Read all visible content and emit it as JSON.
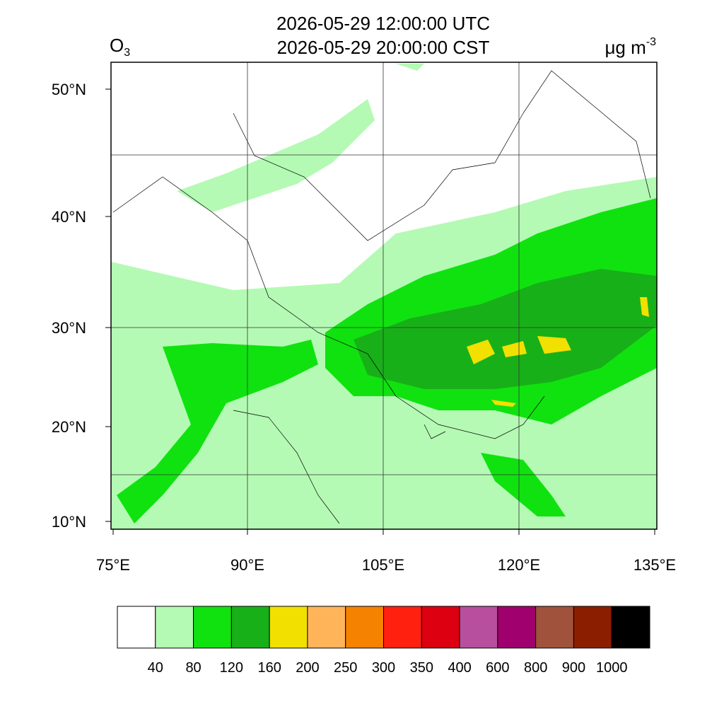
{
  "header": {
    "title_utc": "2026-05-29 12:00:00 UTC",
    "title_local": "2026-05-29 20:00:00 CST",
    "variable": "O",
    "variable_subscript": "3",
    "units": "μg m",
    "units_exponent": "-3"
  },
  "map": {
    "lat_ticks": [
      {
        "value": 50,
        "label": "50°N"
      },
      {
        "value": 40,
        "label": "40°N"
      },
      {
        "value": 30,
        "label": "30°N"
      },
      {
        "value": 20,
        "label": "20°N"
      },
      {
        "value": 10,
        "label": "10°N"
      }
    ],
    "lon_ticks": [
      {
        "value": 75,
        "label": "75°E"
      },
      {
        "value": 90,
        "label": "90°E"
      },
      {
        "value": 105,
        "label": "105°E"
      },
      {
        "value": 120,
        "label": "120°E"
      },
      {
        "value": 135,
        "label": "135°E"
      }
    ]
  },
  "colorbar": {
    "levels": [
      "40",
      "80",
      "120",
      "160",
      "200",
      "250",
      "300",
      "350",
      "400",
      "600",
      "800",
      "900",
      "1000"
    ],
    "colors": [
      "#ffffff",
      "#b4fab4",
      "#10e210",
      "#18b018",
      "#f2e000",
      "#ffb45a",
      "#f58200",
      "#ff2010",
      "#dc0010",
      "#b84e9e",
      "#a0006e",
      "#a0523c",
      "#8c1e00",
      "#000000"
    ]
  }
}
